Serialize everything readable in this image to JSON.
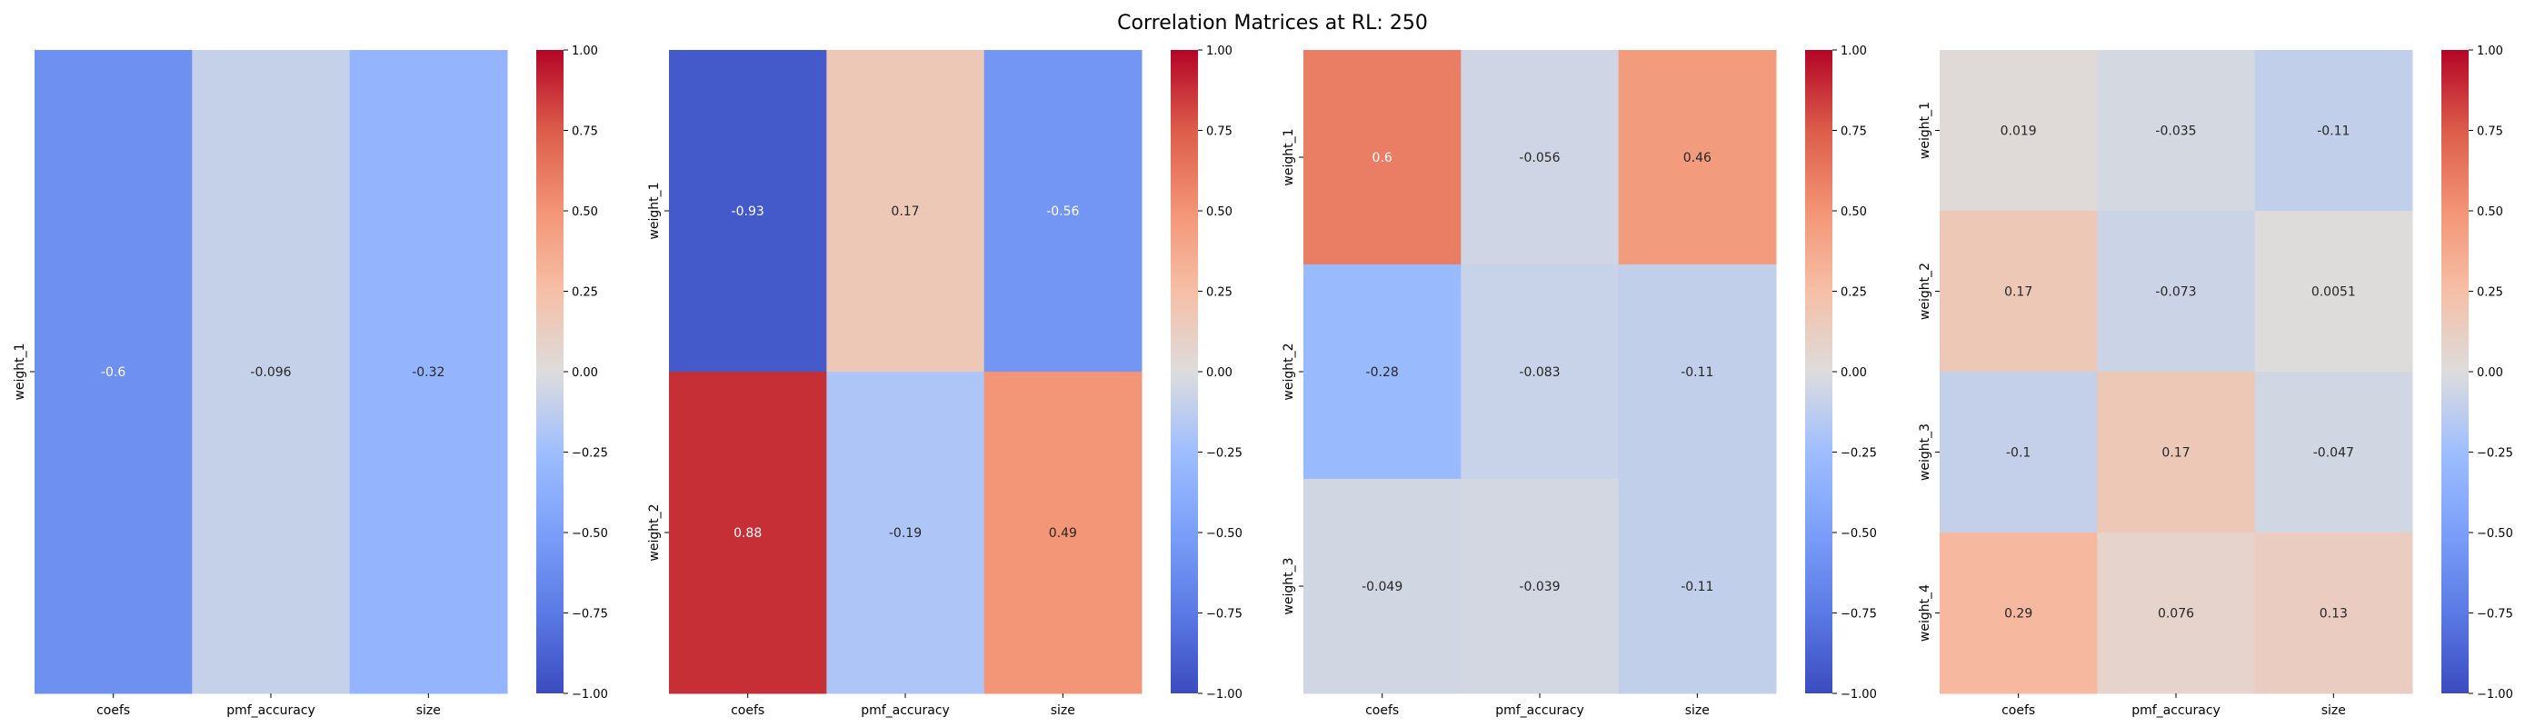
{
  "title": "Correlation Matrices at RL: 250",
  "colorbar": {
    "min": -1.0,
    "max": 1.0,
    "ticks": [
      "1.00",
      "0.75",
      "0.50",
      "0.25",
      "0.00",
      "−0.25",
      "−0.50",
      "−0.75",
      "−1.00"
    ],
    "colormap": "coolwarm"
  },
  "chart_data": [
    {
      "type": "heatmap",
      "columns": [
        "coefs",
        "pmf_accuracy",
        "size"
      ],
      "rows": [
        "weight_1"
      ],
      "values": [
        [
          -0.6,
          -0.096,
          -0.32
        ]
      ],
      "labels": [
        [
          "-0.6",
          "-0.096",
          "-0.32"
        ]
      ],
      "vmin": -1,
      "vmax": 1
    },
    {
      "type": "heatmap",
      "columns": [
        "coefs",
        "pmf_accuracy",
        "size"
      ],
      "rows": [
        "weight_1",
        "weight_2"
      ],
      "values": [
        [
          -0.93,
          0.17,
          -0.56
        ],
        [
          0.88,
          -0.19,
          0.49
        ]
      ],
      "labels": [
        [
          "-0.93",
          "0.17",
          "-0.56"
        ],
        [
          "0.88",
          "-0.19",
          "0.49"
        ]
      ],
      "vmin": -1,
      "vmax": 1
    },
    {
      "type": "heatmap",
      "columns": [
        "coefs",
        "pmf_accuracy",
        "size"
      ],
      "rows": [
        "weight_1",
        "weight_2",
        "weight_3"
      ],
      "values": [
        [
          0.6,
          -0.056,
          0.46
        ],
        [
          -0.28,
          -0.083,
          -0.11
        ],
        [
          -0.049,
          -0.039,
          -0.11
        ]
      ],
      "labels": [
        [
          "0.6",
          "-0.056",
          "0.46"
        ],
        [
          "-0.28",
          "-0.083",
          "-0.11"
        ],
        [
          "-0.049",
          "-0.039",
          "-0.11"
        ]
      ],
      "vmin": -1,
      "vmax": 1
    },
    {
      "type": "heatmap",
      "columns": [
        "coefs",
        "pmf_accuracy",
        "size"
      ],
      "rows": [
        "weight_1",
        "weight_2",
        "weight_3",
        "weight_4"
      ],
      "values": [
        [
          0.019,
          -0.035,
          -0.11
        ],
        [
          0.17,
          -0.073,
          0.0051
        ],
        [
          -0.1,
          0.17,
          -0.047
        ],
        [
          0.29,
          0.076,
          0.13
        ]
      ],
      "labels": [
        [
          "0.019",
          "-0.035",
          "-0.11"
        ],
        [
          "0.17",
          "-0.073",
          "0.0051"
        ],
        [
          "-0.1",
          "0.17",
          "-0.047"
        ],
        [
          "0.29",
          "0.076",
          "0.13"
        ]
      ],
      "vmin": -1,
      "vmax": 1
    }
  ]
}
